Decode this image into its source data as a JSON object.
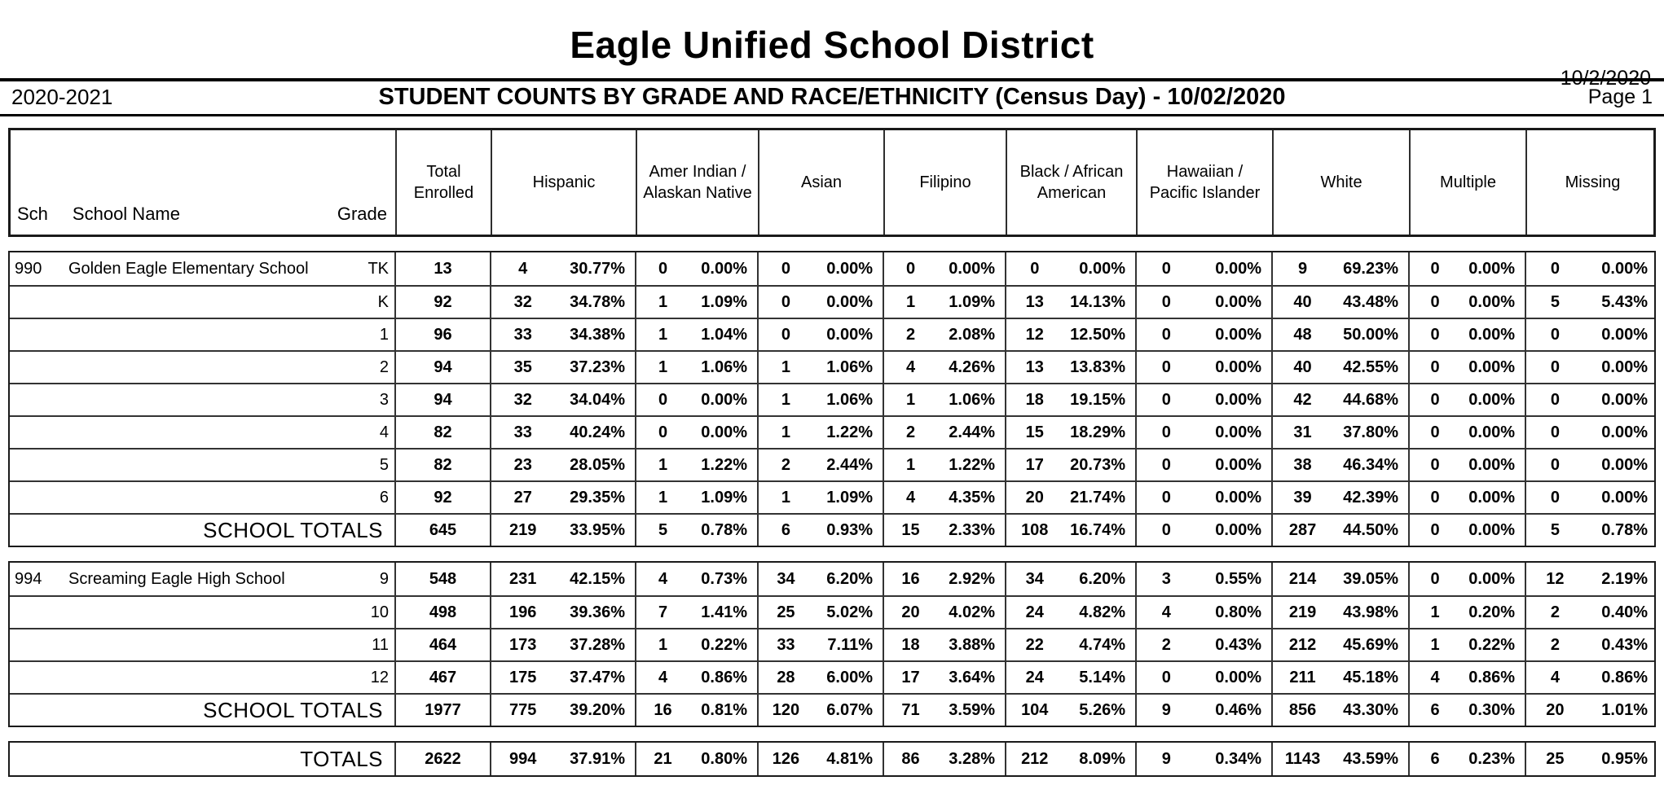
{
  "header": {
    "district_name": "Eagle Unified School District",
    "report_date": "10/2/2020",
    "school_year": "2020-2021",
    "report_title": "STUDENT COUNTS BY GRADE AND RACE/ETHNICITY (Census Day) - 10/02/2020",
    "page_label": "Page 1"
  },
  "table": {
    "headers": {
      "sch": "Sch",
      "school_name": "School Name",
      "grade": "Grade",
      "total_enrolled": "Total Enrolled",
      "race_columns": [
        "Hispanic",
        "Amer Indian / Alaskan Native",
        "Asian",
        "Filipino",
        "Black / African American",
        "Hawaiian / Pacific Islander",
        "White",
        "Multiple",
        "Missing"
      ]
    },
    "sections": [
      {
        "school_code": "990",
        "school_name": "Golden Eagle Elementary School",
        "rows": [
          {
            "grade": "TK",
            "total": "13",
            "cells": [
              [
                "4",
                "30.77%"
              ],
              [
                "0",
                "0.00%"
              ],
              [
                "0",
                "0.00%"
              ],
              [
                "0",
                "0.00%"
              ],
              [
                "0",
                "0.00%"
              ],
              [
                "0",
                "0.00%"
              ],
              [
                "9",
                "69.23%"
              ],
              [
                "0",
                "0.00%"
              ],
              [
                "0",
                "0.00%"
              ]
            ]
          },
          {
            "grade": "K",
            "total": "92",
            "cells": [
              [
                "32",
                "34.78%"
              ],
              [
                "1",
                "1.09%"
              ],
              [
                "0",
                "0.00%"
              ],
              [
                "1",
                "1.09%"
              ],
              [
                "13",
                "14.13%"
              ],
              [
                "0",
                "0.00%"
              ],
              [
                "40",
                "43.48%"
              ],
              [
                "0",
                "0.00%"
              ],
              [
                "5",
                "5.43%"
              ]
            ]
          },
          {
            "grade": "1",
            "total": "96",
            "cells": [
              [
                "33",
                "34.38%"
              ],
              [
                "1",
                "1.04%"
              ],
              [
                "0",
                "0.00%"
              ],
              [
                "2",
                "2.08%"
              ],
              [
                "12",
                "12.50%"
              ],
              [
                "0",
                "0.00%"
              ],
              [
                "48",
                "50.00%"
              ],
              [
                "0",
                "0.00%"
              ],
              [
                "0",
                "0.00%"
              ]
            ]
          },
          {
            "grade": "2",
            "total": "94",
            "cells": [
              [
                "35",
                "37.23%"
              ],
              [
                "1",
                "1.06%"
              ],
              [
                "1",
                "1.06%"
              ],
              [
                "4",
                "4.26%"
              ],
              [
                "13",
                "13.83%"
              ],
              [
                "0",
                "0.00%"
              ],
              [
                "40",
                "42.55%"
              ],
              [
                "0",
                "0.00%"
              ],
              [
                "0",
                "0.00%"
              ]
            ]
          },
          {
            "grade": "3",
            "total": "94",
            "cells": [
              [
                "32",
                "34.04%"
              ],
              [
                "0",
                "0.00%"
              ],
              [
                "1",
                "1.06%"
              ],
              [
                "1",
                "1.06%"
              ],
              [
                "18",
                "19.15%"
              ],
              [
                "0",
                "0.00%"
              ],
              [
                "42",
                "44.68%"
              ],
              [
                "0",
                "0.00%"
              ],
              [
                "0",
                "0.00%"
              ]
            ]
          },
          {
            "grade": "4",
            "total": "82",
            "cells": [
              [
                "33",
                "40.24%"
              ],
              [
                "0",
                "0.00%"
              ],
              [
                "1",
                "1.22%"
              ],
              [
                "2",
                "2.44%"
              ],
              [
                "15",
                "18.29%"
              ],
              [
                "0",
                "0.00%"
              ],
              [
                "31",
                "37.80%"
              ],
              [
                "0",
                "0.00%"
              ],
              [
                "0",
                "0.00%"
              ]
            ]
          },
          {
            "grade": "5",
            "total": "82",
            "cells": [
              [
                "23",
                "28.05%"
              ],
              [
                "1",
                "1.22%"
              ],
              [
                "2",
                "2.44%"
              ],
              [
                "1",
                "1.22%"
              ],
              [
                "17",
                "20.73%"
              ],
              [
                "0",
                "0.00%"
              ],
              [
                "38",
                "46.34%"
              ],
              [
                "0",
                "0.00%"
              ],
              [
                "0",
                "0.00%"
              ]
            ]
          },
          {
            "grade": "6",
            "total": "92",
            "cells": [
              [
                "27",
                "29.35%"
              ],
              [
                "1",
                "1.09%"
              ],
              [
                "1",
                "1.09%"
              ],
              [
                "4",
                "4.35%"
              ],
              [
                "20",
                "21.74%"
              ],
              [
                "0",
                "0.00%"
              ],
              [
                "39",
                "42.39%"
              ],
              [
                "0",
                "0.00%"
              ],
              [
                "0",
                "0.00%"
              ]
            ]
          }
        ],
        "totals_label": "SCHOOL TOTALS",
        "totals": {
          "total": "645",
          "cells": [
            [
              "219",
              "33.95%"
            ],
            [
              "5",
              "0.78%"
            ],
            [
              "6",
              "0.93%"
            ],
            [
              "15",
              "2.33%"
            ],
            [
              "108",
              "16.74%"
            ],
            [
              "0",
              "0.00%"
            ],
            [
              "287",
              "44.50%"
            ],
            [
              "0",
              "0.00%"
            ],
            [
              "5",
              "0.78%"
            ]
          ]
        }
      },
      {
        "school_code": "994",
        "school_name": "Screaming Eagle High School",
        "rows": [
          {
            "grade": "9",
            "total": "548",
            "cells": [
              [
                "231",
                "42.15%"
              ],
              [
                "4",
                "0.73%"
              ],
              [
                "34",
                "6.20%"
              ],
              [
                "16",
                "2.92%"
              ],
              [
                "34",
                "6.20%"
              ],
              [
                "3",
                "0.55%"
              ],
              [
                "214",
                "39.05%"
              ],
              [
                "0",
                "0.00%"
              ],
              [
                "12",
                "2.19%"
              ]
            ]
          },
          {
            "grade": "10",
            "total": "498",
            "cells": [
              [
                "196",
                "39.36%"
              ],
              [
                "7",
                "1.41%"
              ],
              [
                "25",
                "5.02%"
              ],
              [
                "20",
                "4.02%"
              ],
              [
                "24",
                "4.82%"
              ],
              [
                "4",
                "0.80%"
              ],
              [
                "219",
                "43.98%"
              ],
              [
                "1",
                "0.20%"
              ],
              [
                "2",
                "0.40%"
              ]
            ]
          },
          {
            "grade": "11",
            "total": "464",
            "cells": [
              [
                "173",
                "37.28%"
              ],
              [
                "1",
                "0.22%"
              ],
              [
                "33",
                "7.11%"
              ],
              [
                "18",
                "3.88%"
              ],
              [
                "22",
                "4.74%"
              ],
              [
                "2",
                "0.43%"
              ],
              [
                "212",
                "45.69%"
              ],
              [
                "1",
                "0.22%"
              ],
              [
                "2",
                "0.43%"
              ]
            ]
          },
          {
            "grade": "12",
            "total": "467",
            "cells": [
              [
                "175",
                "37.47%"
              ],
              [
                "4",
                "0.86%"
              ],
              [
                "28",
                "6.00%"
              ],
              [
                "17",
                "3.64%"
              ],
              [
                "24",
                "5.14%"
              ],
              [
                "0",
                "0.00%"
              ],
              [
                "211",
                "45.18%"
              ],
              [
                "4",
                "0.86%"
              ],
              [
                "4",
                "0.86%"
              ]
            ]
          }
        ],
        "totals_label": "SCHOOL TOTALS",
        "totals": {
          "total": "1977",
          "cells": [
            [
              "775",
              "39.20%"
            ],
            [
              "16",
              "0.81%"
            ],
            [
              "120",
              "6.07%"
            ],
            [
              "71",
              "3.59%"
            ],
            [
              "104",
              "5.26%"
            ],
            [
              "9",
              "0.46%"
            ],
            [
              "856",
              "43.30%"
            ],
            [
              "6",
              "0.30%"
            ],
            [
              "20",
              "1.01%"
            ]
          ]
        }
      }
    ],
    "grand_totals": {
      "label": "TOTALS",
      "total": "2622",
      "cells": [
        [
          "994",
          "37.91%"
        ],
        [
          "21",
          "0.80%"
        ],
        [
          "126",
          "4.81%"
        ],
        [
          "86",
          "3.28%"
        ],
        [
          "212",
          "8.09%"
        ],
        [
          "9",
          "0.34%"
        ],
        [
          "1143",
          "43.59%"
        ],
        [
          "6",
          "0.23%"
        ],
        [
          "25",
          "0.95%"
        ]
      ]
    }
  }
}
